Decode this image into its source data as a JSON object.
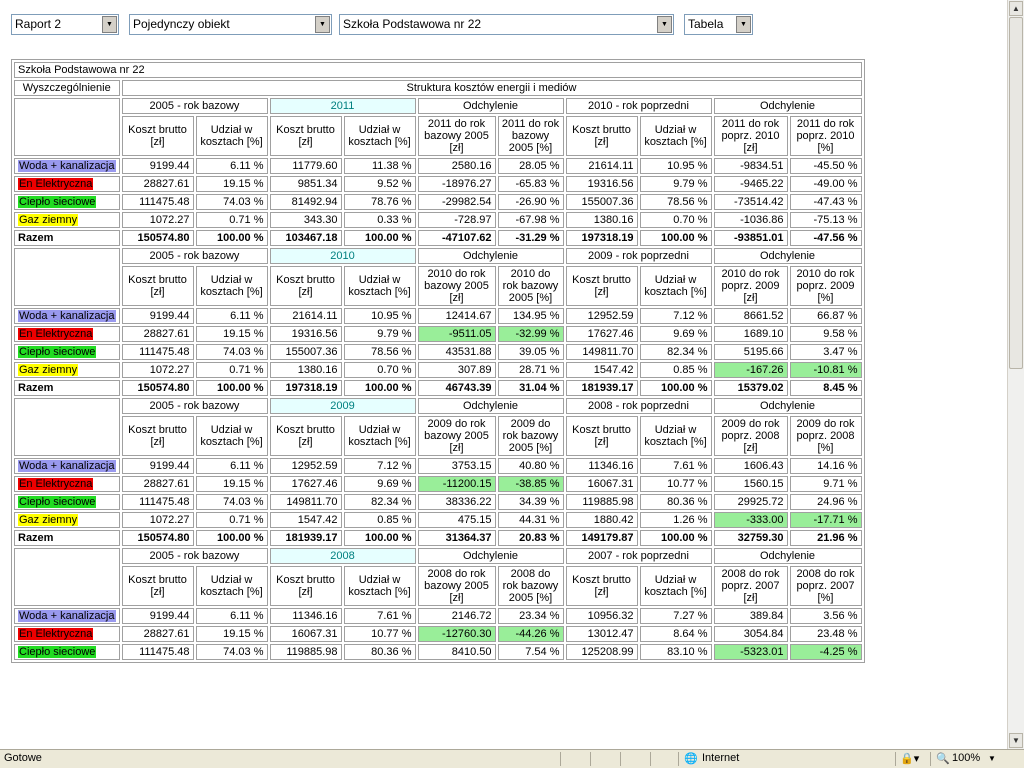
{
  "filters": {
    "report": "Raport 2",
    "object_type": "Pojedynczy obiekt",
    "school": "Szkoła Podstawowa nr 22",
    "view": "Tabela"
  },
  "title": "Szkoła Podstawowa nr 22",
  "header": {
    "col1": "Wyszczególnienie",
    "structure": "Struktura kosztów energii i mediów",
    "cost": "Koszt brutto [zł]",
    "share": "Udział w kosztach [%]",
    "deviation": "Odchylenie",
    "base_label": "2005 - rok bazowy",
    "prev_suffix": " - rok poprzedni"
  },
  "categories": [
    {
      "name": "Woda + kanalizacja",
      "color": "#9999ee"
    },
    {
      "name": "En Elektryczna",
      "color": "#ee0000"
    },
    {
      "name": "Ciepło sieciowe",
      "color": "#22dd22"
    },
    {
      "name": "Gaz ziemny",
      "color": "#ffff00"
    }
  ],
  "total_label": "Razem",
  "blocks": [
    {
      "year": "2011",
      "prev_year": "2010",
      "rows": [
        [
          "9199.44",
          "6.11 %",
          "11779.60",
          "11.38 %",
          "2580.16",
          "28.05 %",
          "21614.11",
          "10.95 %",
          "-9834.51",
          "-45.50 %"
        ],
        [
          "28827.61",
          "19.15 %",
          "9851.34",
          "9.52 %",
          "-18976.27",
          "-65.83 %",
          "19316.56",
          "9.79 %",
          "-9465.22",
          "-49.00 %"
        ],
        [
          "111475.48",
          "74.03 %",
          "81492.94",
          "78.76 %",
          "-29982.54",
          "-26.90 %",
          "155007.36",
          "78.56 %",
          "-73514.42",
          "-47.43 %"
        ],
        [
          "1072.27",
          "0.71 %",
          "343.30",
          "0.33 %",
          "-728.97",
          "-67.98 %",
          "1380.16",
          "0.70 %",
          "-1036.86",
          "-75.13 %"
        ],
        [
          "150574.80",
          "100.00 %",
          "103467.18",
          "100.00 %",
          "-47107.62",
          "-31.29 %",
          "197318.19",
          "100.00 %",
          "-93851.01",
          "-47.56 %"
        ]
      ],
      "green": []
    },
    {
      "year": "2010",
      "prev_year": "2009",
      "rows": [
        [
          "9199.44",
          "6.11 %",
          "21614.11",
          "10.95 %",
          "12414.67",
          "134.95 %",
          "12952.59",
          "7.12 %",
          "8661.52",
          "66.87 %"
        ],
        [
          "28827.61",
          "19.15 %",
          "19316.56",
          "9.79 %",
          "-9511.05",
          "-32.99 %",
          "17627.46",
          "9.69 %",
          "1689.10",
          "9.58 %"
        ],
        [
          "111475.48",
          "74.03 %",
          "155007.36",
          "78.56 %",
          "43531.88",
          "39.05 %",
          "149811.70",
          "82.34 %",
          "5195.66",
          "3.47 %"
        ],
        [
          "1072.27",
          "0.71 %",
          "1380.16",
          "0.70 %",
          "307.89",
          "28.71 %",
          "1547.42",
          "0.85 %",
          "-167.26",
          "-10.81 %"
        ],
        [
          "150574.80",
          "100.00 %",
          "197318.19",
          "100.00 %",
          "46743.39",
          "31.04 %",
          "181939.17",
          "100.00 %",
          "15379.02",
          "8.45 %"
        ]
      ],
      "green": [
        "1-4",
        "1-5",
        "3-8",
        "3-9"
      ]
    },
    {
      "year": "2009",
      "prev_year": "2008",
      "rows": [
        [
          "9199.44",
          "6.11 %",
          "12952.59",
          "7.12 %",
          "3753.15",
          "40.80 %",
          "11346.16",
          "7.61 %",
          "1606.43",
          "14.16 %"
        ],
        [
          "28827.61",
          "19.15 %",
          "17627.46",
          "9.69 %",
          "-11200.15",
          "-38.85 %",
          "16067.31",
          "10.77 %",
          "1560.15",
          "9.71 %"
        ],
        [
          "111475.48",
          "74.03 %",
          "149811.70",
          "82.34 %",
          "38336.22",
          "34.39 %",
          "119885.98",
          "80.36 %",
          "29925.72",
          "24.96 %"
        ],
        [
          "1072.27",
          "0.71 %",
          "1547.42",
          "0.85 %",
          "475.15",
          "44.31 %",
          "1880.42",
          "1.26 %",
          "-333.00",
          "-17.71 %"
        ],
        [
          "150574.80",
          "100.00 %",
          "181939.17",
          "100.00 %",
          "31364.37",
          "20.83 %",
          "149179.87",
          "100.00 %",
          "32759.30",
          "21.96 %"
        ]
      ],
      "green": [
        "1-4",
        "1-5",
        "3-8",
        "3-9"
      ]
    },
    {
      "year": "2008",
      "prev_year": "2007",
      "rows": [
        [
          "9199.44",
          "6.11 %",
          "11346.16",
          "7.61 %",
          "2146.72",
          "23.34 %",
          "10956.32",
          "7.27 %",
          "389.84",
          "3.56 %"
        ],
        [
          "28827.61",
          "19.15 %",
          "16067.31",
          "10.77 %",
          "-12760.30",
          "-44.26 %",
          "13012.47",
          "8.64 %",
          "3054.84",
          "23.48 %"
        ],
        [
          "111475.48",
          "74.03 %",
          "119885.98",
          "80.36 %",
          "8410.50",
          "7.54 %",
          "125208.99",
          "83.10 %",
          "-5323.01",
          "-4.25 %"
        ]
      ],
      "green": [
        "1-4",
        "1-5",
        "2-8",
        "2-9"
      ]
    }
  ],
  "status": {
    "left": "Gotowe",
    "zone": "Internet",
    "zoom": "100%"
  }
}
